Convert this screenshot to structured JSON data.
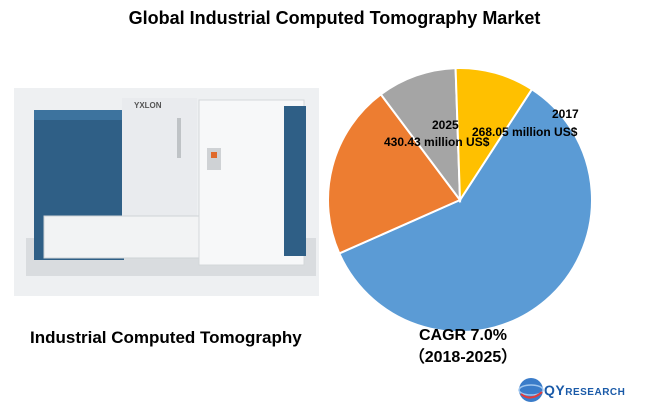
{
  "header": {
    "title": "Global Industrial Computed Tomography Market"
  },
  "image": {
    "brand_label": "YXLON",
    "caption": "Industrial Computed Tomography"
  },
  "chart_data": {
    "type": "pie",
    "categories": [
      "2017",
      "2025",
      "gray",
      "yellow"
    ],
    "values": [
      59.2,
      21.4,
      9.7,
      9.7
    ],
    "colors": [
      "#5b9bd5",
      "#ed7d31",
      "#a5a5a5",
      "#ffc000"
    ],
    "annotations": [
      {
        "year": "2017",
        "value": "268.05 million US$"
      },
      {
        "year": "2025",
        "value": "430.43 million US$"
      }
    ]
  },
  "cagr": {
    "line1": "CAGR 7.0%",
    "line2": "（2018-2025）"
  },
  "logo": {
    "text_main": "QY",
    "text_rest": "RESEARCH"
  }
}
